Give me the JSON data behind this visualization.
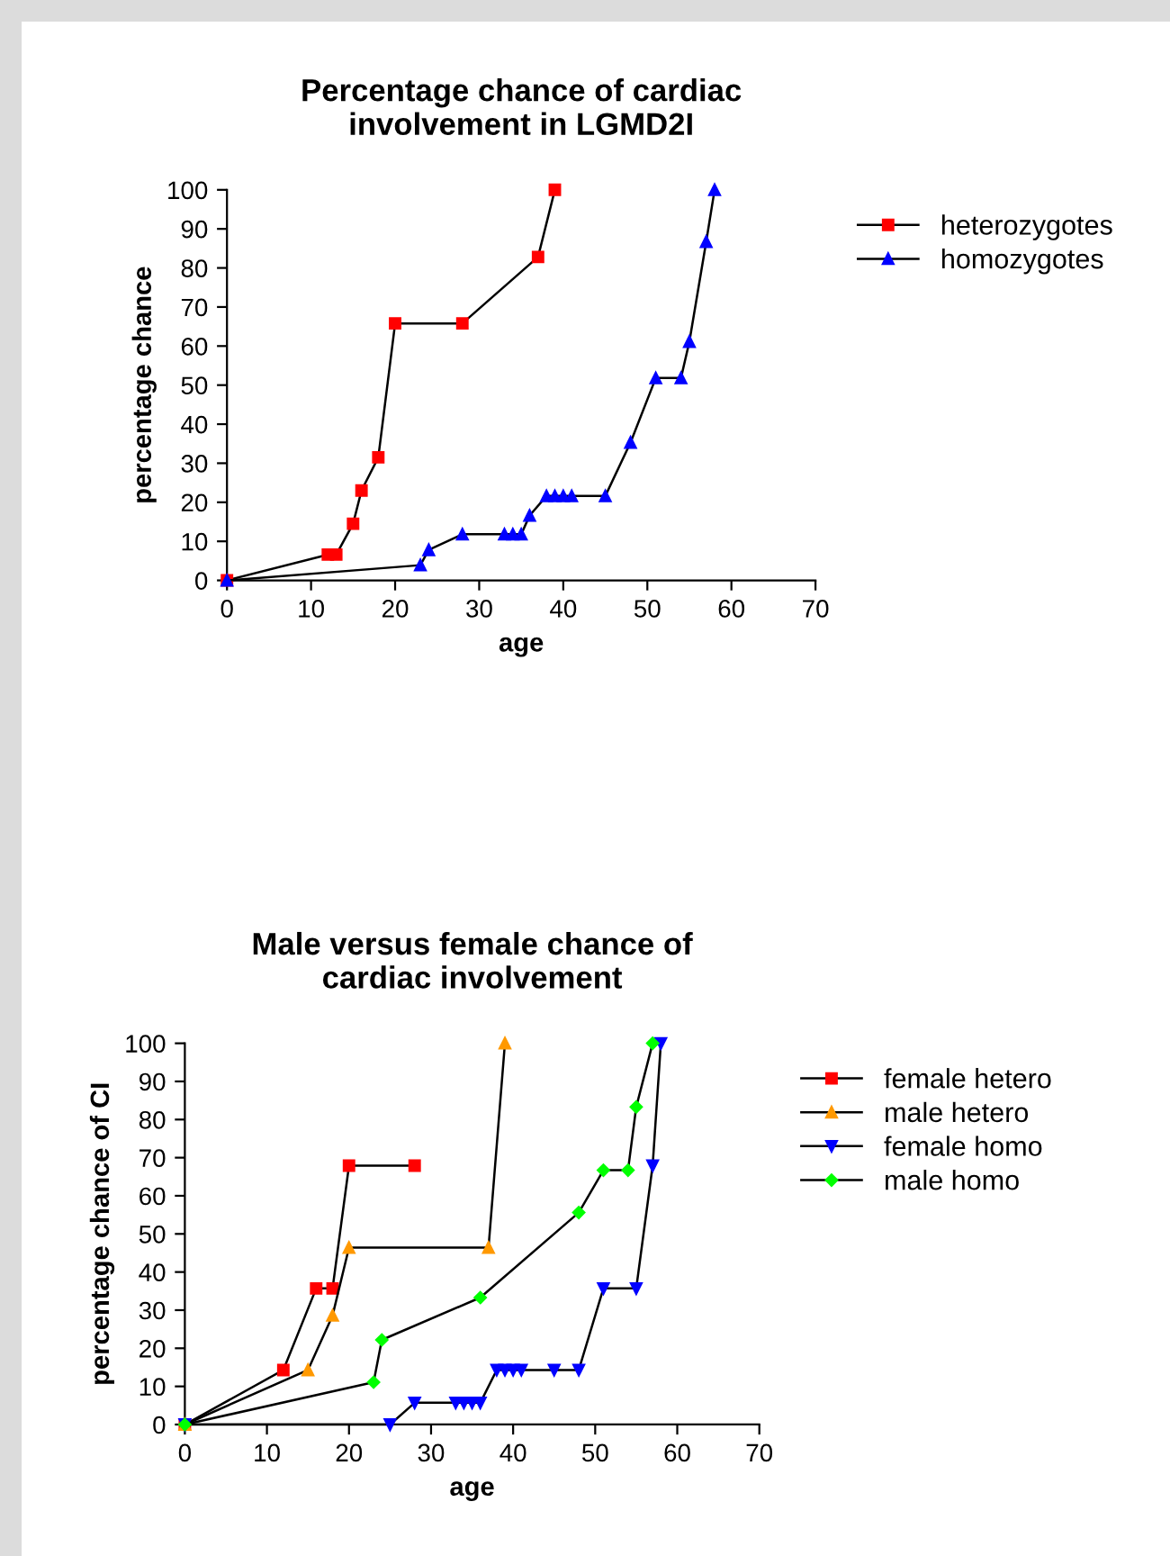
{
  "chart_data": [
    {
      "type": "line",
      "title": "Percentage chance of cardiac\ninvolvement in LGMD2I",
      "xlabel": "age",
      "ylabel": "percentage chance",
      "xlim": [
        0,
        70
      ],
      "ylim": [
        0,
        100
      ],
      "xticks": [
        0,
        10,
        20,
        30,
        40,
        50,
        60,
        70
      ],
      "yticks": [
        0,
        10,
        20,
        30,
        40,
        50,
        60,
        70,
        80,
        90,
        100
      ],
      "grid": false,
      "legend": "top right",
      "line_style": "solid",
      "series": [
        {
          "name": "heterozygotes",
          "color": "#ff0000",
          "marker": "square",
          "x": [
            0,
            12,
            13,
            15,
            16,
            18,
            20,
            28,
            37,
            39
          ],
          "values": [
            0,
            6.6,
            6.6,
            14.5,
            23,
            31.5,
            65.8,
            65.8,
            82.8,
            100
          ]
        },
        {
          "name": "homozygotes",
          "color": "#0000ff",
          "marker": "triangle",
          "x": [
            0,
            23,
            24,
            28,
            33,
            34,
            35,
            36,
            38,
            39,
            40,
            41,
            45,
            48,
            51,
            54,
            55,
            57,
            58
          ],
          "values": [
            0,
            3.9,
            7.8,
            11.8,
            11.8,
            11.8,
            11.8,
            16.6,
            21.6,
            21.6,
            21.6,
            21.6,
            21.6,
            35.3,
            51.8,
            51.8,
            61.1,
            86.7,
            100
          ]
        }
      ]
    },
    {
      "type": "line",
      "title": "Male versus female chance of\ncardiac involvement",
      "xlabel": "age",
      "ylabel": "percentage chance of CI",
      "xlim": [
        0,
        70
      ],
      "ylim": [
        0,
        100
      ],
      "xticks": [
        0,
        10,
        20,
        30,
        40,
        50,
        60,
        70
      ],
      "yticks": [
        0,
        10,
        20,
        30,
        40,
        50,
        60,
        70,
        80,
        90,
        100
      ],
      "grid": false,
      "legend": "top right",
      "line_style": "solid",
      "series": [
        {
          "name": "female hetero",
          "color": "#ff0000",
          "marker": "square",
          "x": [
            0,
            12,
            16,
            18,
            20,
            28
          ],
          "values": [
            0,
            14.3,
            35.7,
            35.7,
            67.9,
            67.9
          ]
        },
        {
          "name": "male hetero",
          "color": "#ff9900",
          "marker": "triangle",
          "x": [
            0,
            15,
            18,
            20,
            37,
            39
          ],
          "values": [
            0,
            14.3,
            28.6,
            46.4,
            46.4,
            100
          ]
        },
        {
          "name": "female homo",
          "color": "#0000ff",
          "marker": "triangle_down",
          "x": [
            0,
            25,
            28,
            33,
            34,
            35,
            36,
            38,
            39,
            40,
            41,
            45,
            48,
            51,
            55,
            57,
            58
          ],
          "values": [
            0,
            0,
            5.7,
            5.7,
            5.7,
            5.7,
            5.7,
            14.3,
            14.3,
            14.3,
            14.3,
            14.3,
            14.3,
            35.7,
            35.7,
            67.9,
            100
          ]
        },
        {
          "name": "male homo",
          "color": "#00ff00",
          "marker": "diamond",
          "x": [
            0,
            23,
            24,
            36,
            48,
            51,
            54,
            55,
            57
          ],
          "values": [
            0,
            11.1,
            22.2,
            33.3,
            55.6,
            66.7,
            66.7,
            83.3,
            100
          ]
        }
      ]
    }
  ]
}
